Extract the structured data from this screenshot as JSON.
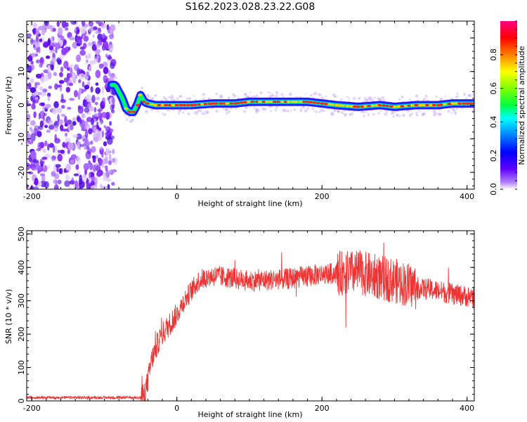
{
  "title": "S162.2023.028.23.22.G08",
  "chart_data": [
    {
      "type": "heatmap",
      "name": "spectrogram",
      "xlabel": "Height of straight line (km)",
      "ylabel": "Frequency (Hz)",
      "xlim": [
        -207,
        410
      ],
      "ylim": [
        -25,
        25
      ],
      "xticks": [
        -200,
        0,
        200,
        400
      ],
      "yticks": [
        -20,
        -10,
        0,
        10,
        20
      ],
      "colorbar": {
        "label": "Normalized spectral amplitude",
        "range": [
          0,
          1
        ],
        "ticks": [
          "0.0",
          "0.2",
          "0.4",
          "0.6",
          "0.8"
        ]
      },
      "ridge": {
        "x": [
          -85,
          -80,
          -75,
          -70,
          -65,
          -60,
          -55,
          -50,
          -45,
          -40,
          -30,
          -20,
          0,
          20,
          50,
          80,
          100,
          130,
          150,
          180,
          200,
          220,
          250,
          280,
          300,
          330,
          360,
          380,
          410
        ],
        "y": [
          6,
          4,
          2,
          -1,
          -2,
          -2,
          0,
          3,
          1,
          0.5,
          0,
          0,
          0,
          0,
          0.5,
          0.5,
          1,
          1,
          1,
          1,
          0.5,
          0,
          -0.5,
          0,
          -0.5,
          0,
          0,
          0.5,
          0.5
        ]
      }
    },
    {
      "type": "line",
      "name": "snr",
      "xlabel": "Height of straight line (km)",
      "ylabel": "SNR (10 * v/v)",
      "xlim": [
        -207,
        410
      ],
      "ylim": [
        0,
        510
      ],
      "xticks": [
        -200,
        0,
        200,
        400
      ],
      "yticks": [
        0,
        100,
        200,
        300,
        400,
        500
      ],
      "color": "#ef3333",
      "envelope": {
        "x": [
          -207,
          -150,
          -100,
          -50,
          -45,
          -40,
          -35,
          -30,
          -25,
          -20,
          -10,
          0,
          10,
          20,
          30,
          40,
          50,
          70,
          100,
          150,
          200,
          250,
          280,
          300,
          330,
          360,
          380,
          410
        ],
        "y": [
          10,
          10,
          10,
          10,
          20,
          60,
          120,
          150,
          180,
          200,
          230,
          260,
          300,
          330,
          360,
          370,
          375,
          370,
          360,
          365,
          380,
          385,
          370,
          360,
          340,
          330,
          320,
          310
        ]
      }
    }
  ]
}
